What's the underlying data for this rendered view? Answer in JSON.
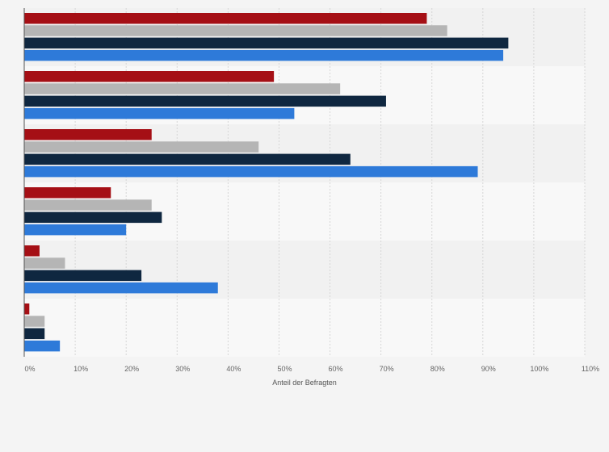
{
  "chart_data": {
    "type": "bar",
    "orientation": "horizontal",
    "categories": [
      "",
      "",
      "",
      "",
      "",
      ""
    ],
    "series": [
      {
        "color": "#a50f15",
        "values": [
          79,
          49,
          25,
          17,
          3,
          1
        ]
      },
      {
        "color": "#b5b5b5",
        "values": [
          83,
          62,
          46,
          25,
          8,
          4
        ]
      },
      {
        "color": "#0f2740",
        "values": [
          95,
          71,
          64,
          27,
          23,
          4
        ]
      },
      {
        "color": "#2e7ad9",
        "values": [
          94,
          53,
          89,
          20,
          38,
          7
        ]
      }
    ],
    "xlabel": "Anteil der Befragten",
    "xlim": [
      0,
      110
    ],
    "xticks": [
      "0%",
      "10%",
      "20%",
      "30%",
      "40%",
      "50%",
      "60%",
      "70%",
      "80%",
      "90%",
      "100%",
      "110%"
    ],
    "grid": "vertical-dashed",
    "legend": "none"
  }
}
